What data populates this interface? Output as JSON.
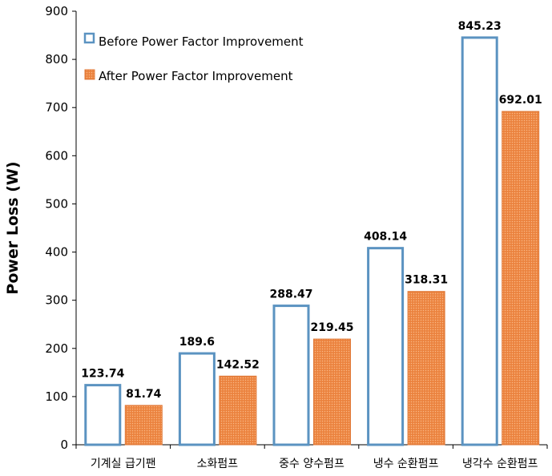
{
  "chart_data": {
    "type": "bar",
    "xlabel": "",
    "ylabel": "Power Loss (W)",
    "ylim": [
      0,
      900
    ],
    "yticks": [
      0,
      100,
      200,
      300,
      400,
      500,
      600,
      700,
      800,
      900
    ],
    "categories": [
      "기계실 급기팬",
      "소화펌프",
      "중수 양수펌프",
      "냉수 순환펌프",
      "냉각수 순환펌프"
    ],
    "series": [
      {
        "name": "Before Power Factor Improvement",
        "values": [
          123.74,
          189.6,
          288.47,
          408.14,
          845.23
        ],
        "labels": [
          "123.74",
          "189.6",
          "288.47",
          "408.14",
          "845.23"
        ],
        "color": "#5b93c1",
        "fill": "#ffffff"
      },
      {
        "name": "After Power Factor Improvement",
        "values": [
          81.74,
          142.52,
          219.45,
          318.31,
          692.01
        ],
        "labels": [
          "81.74",
          "142.52",
          "219.45",
          "318.31",
          "692.01"
        ],
        "color": "#e07a3a",
        "fill": "#ef8b48"
      }
    ],
    "legend_position": "top-left",
    "grid": false
  }
}
